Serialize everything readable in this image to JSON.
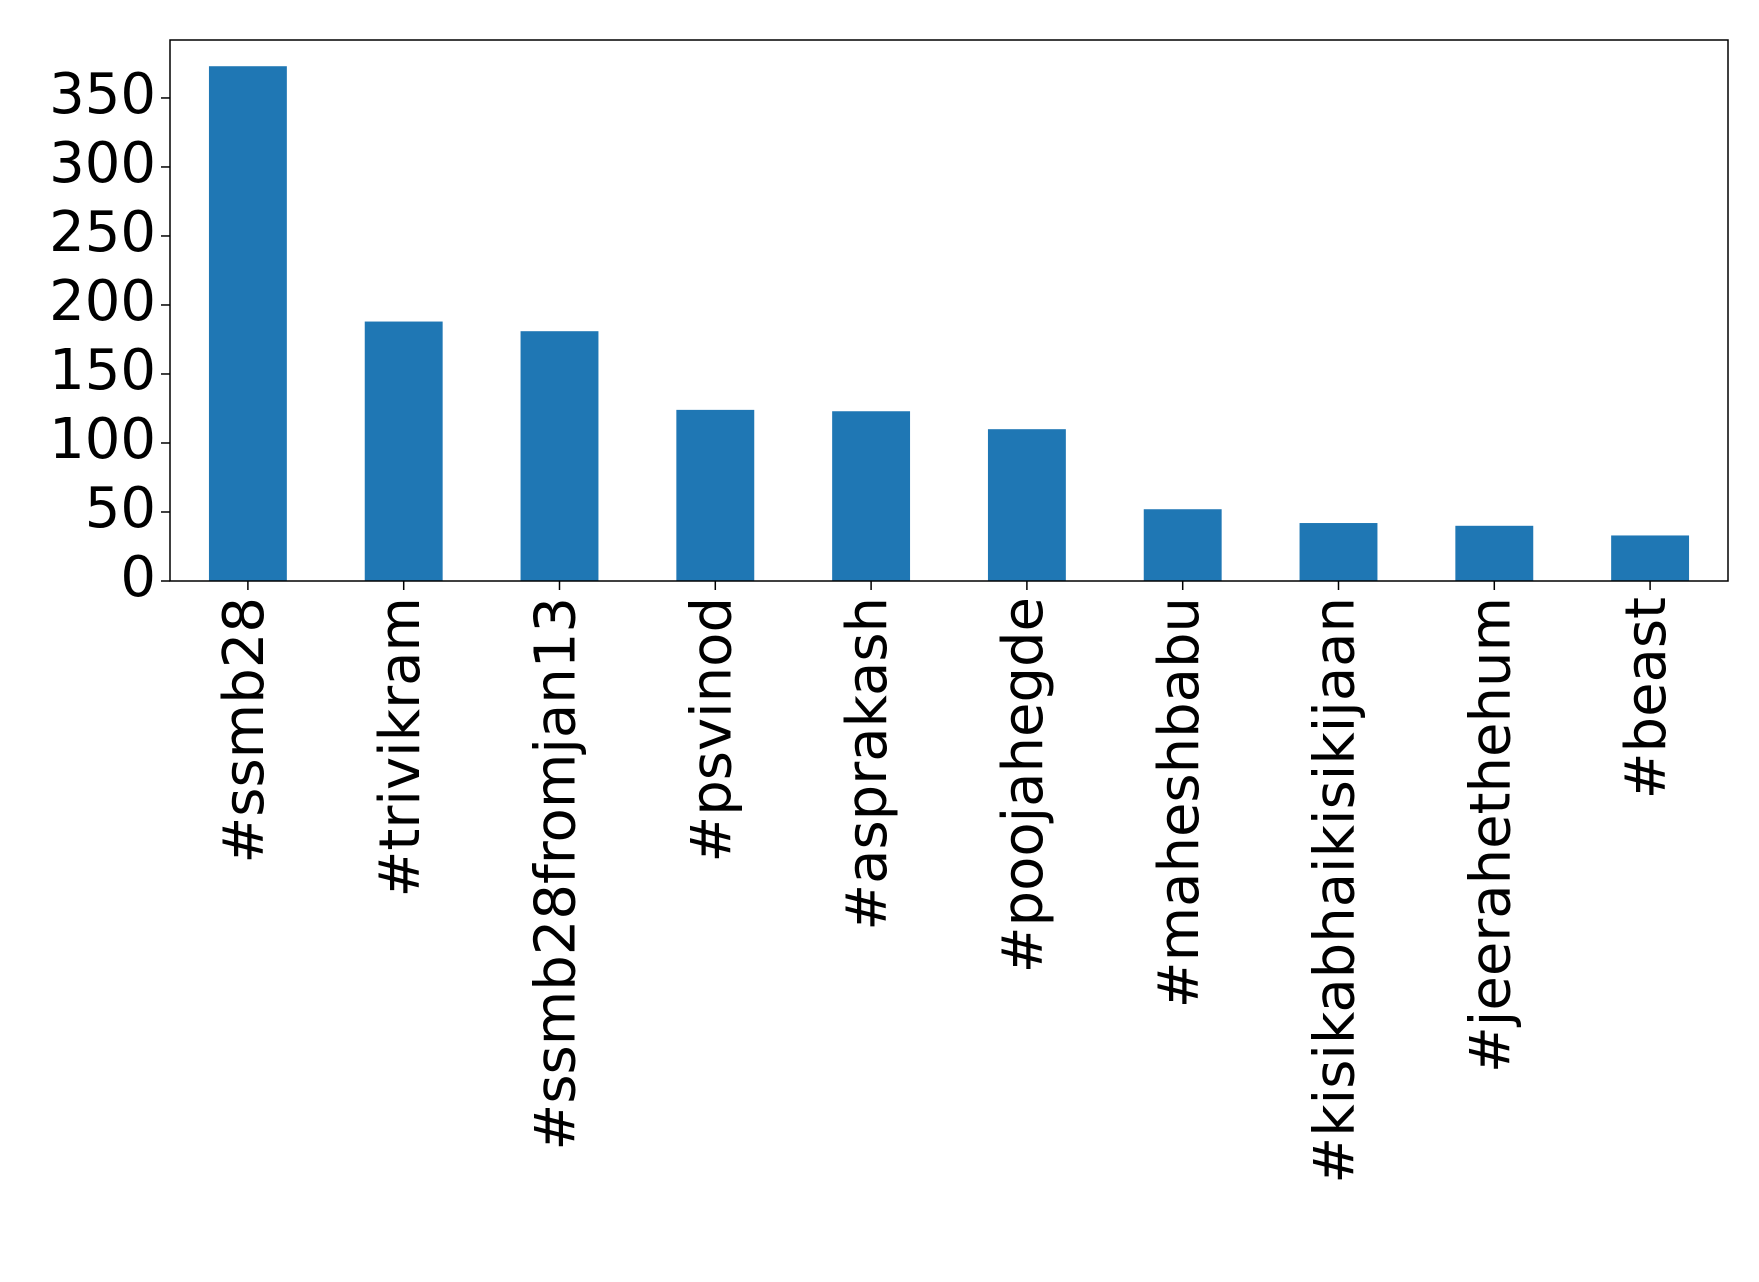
{
  "chart_data": {
    "type": "bar",
    "categories": [
      "#ssmb28",
      "#trivikram",
      "#ssmb28fromjan13",
      "#psvinod",
      "#asprakash",
      "#poojahegde",
      "#maheshbabu",
      "#kisikabhaikisikijaan",
      "#jeerahethehum",
      "#beast"
    ],
    "values": [
      373,
      188,
      181,
      124,
      123,
      110,
      52,
      42,
      40,
      33
    ],
    "color": "#1f77b4",
    "ylim": [
      0,
      392
    ],
    "yticks": [
      0,
      50,
      100,
      150,
      200,
      250,
      300,
      350
    ],
    "grid": false
  }
}
